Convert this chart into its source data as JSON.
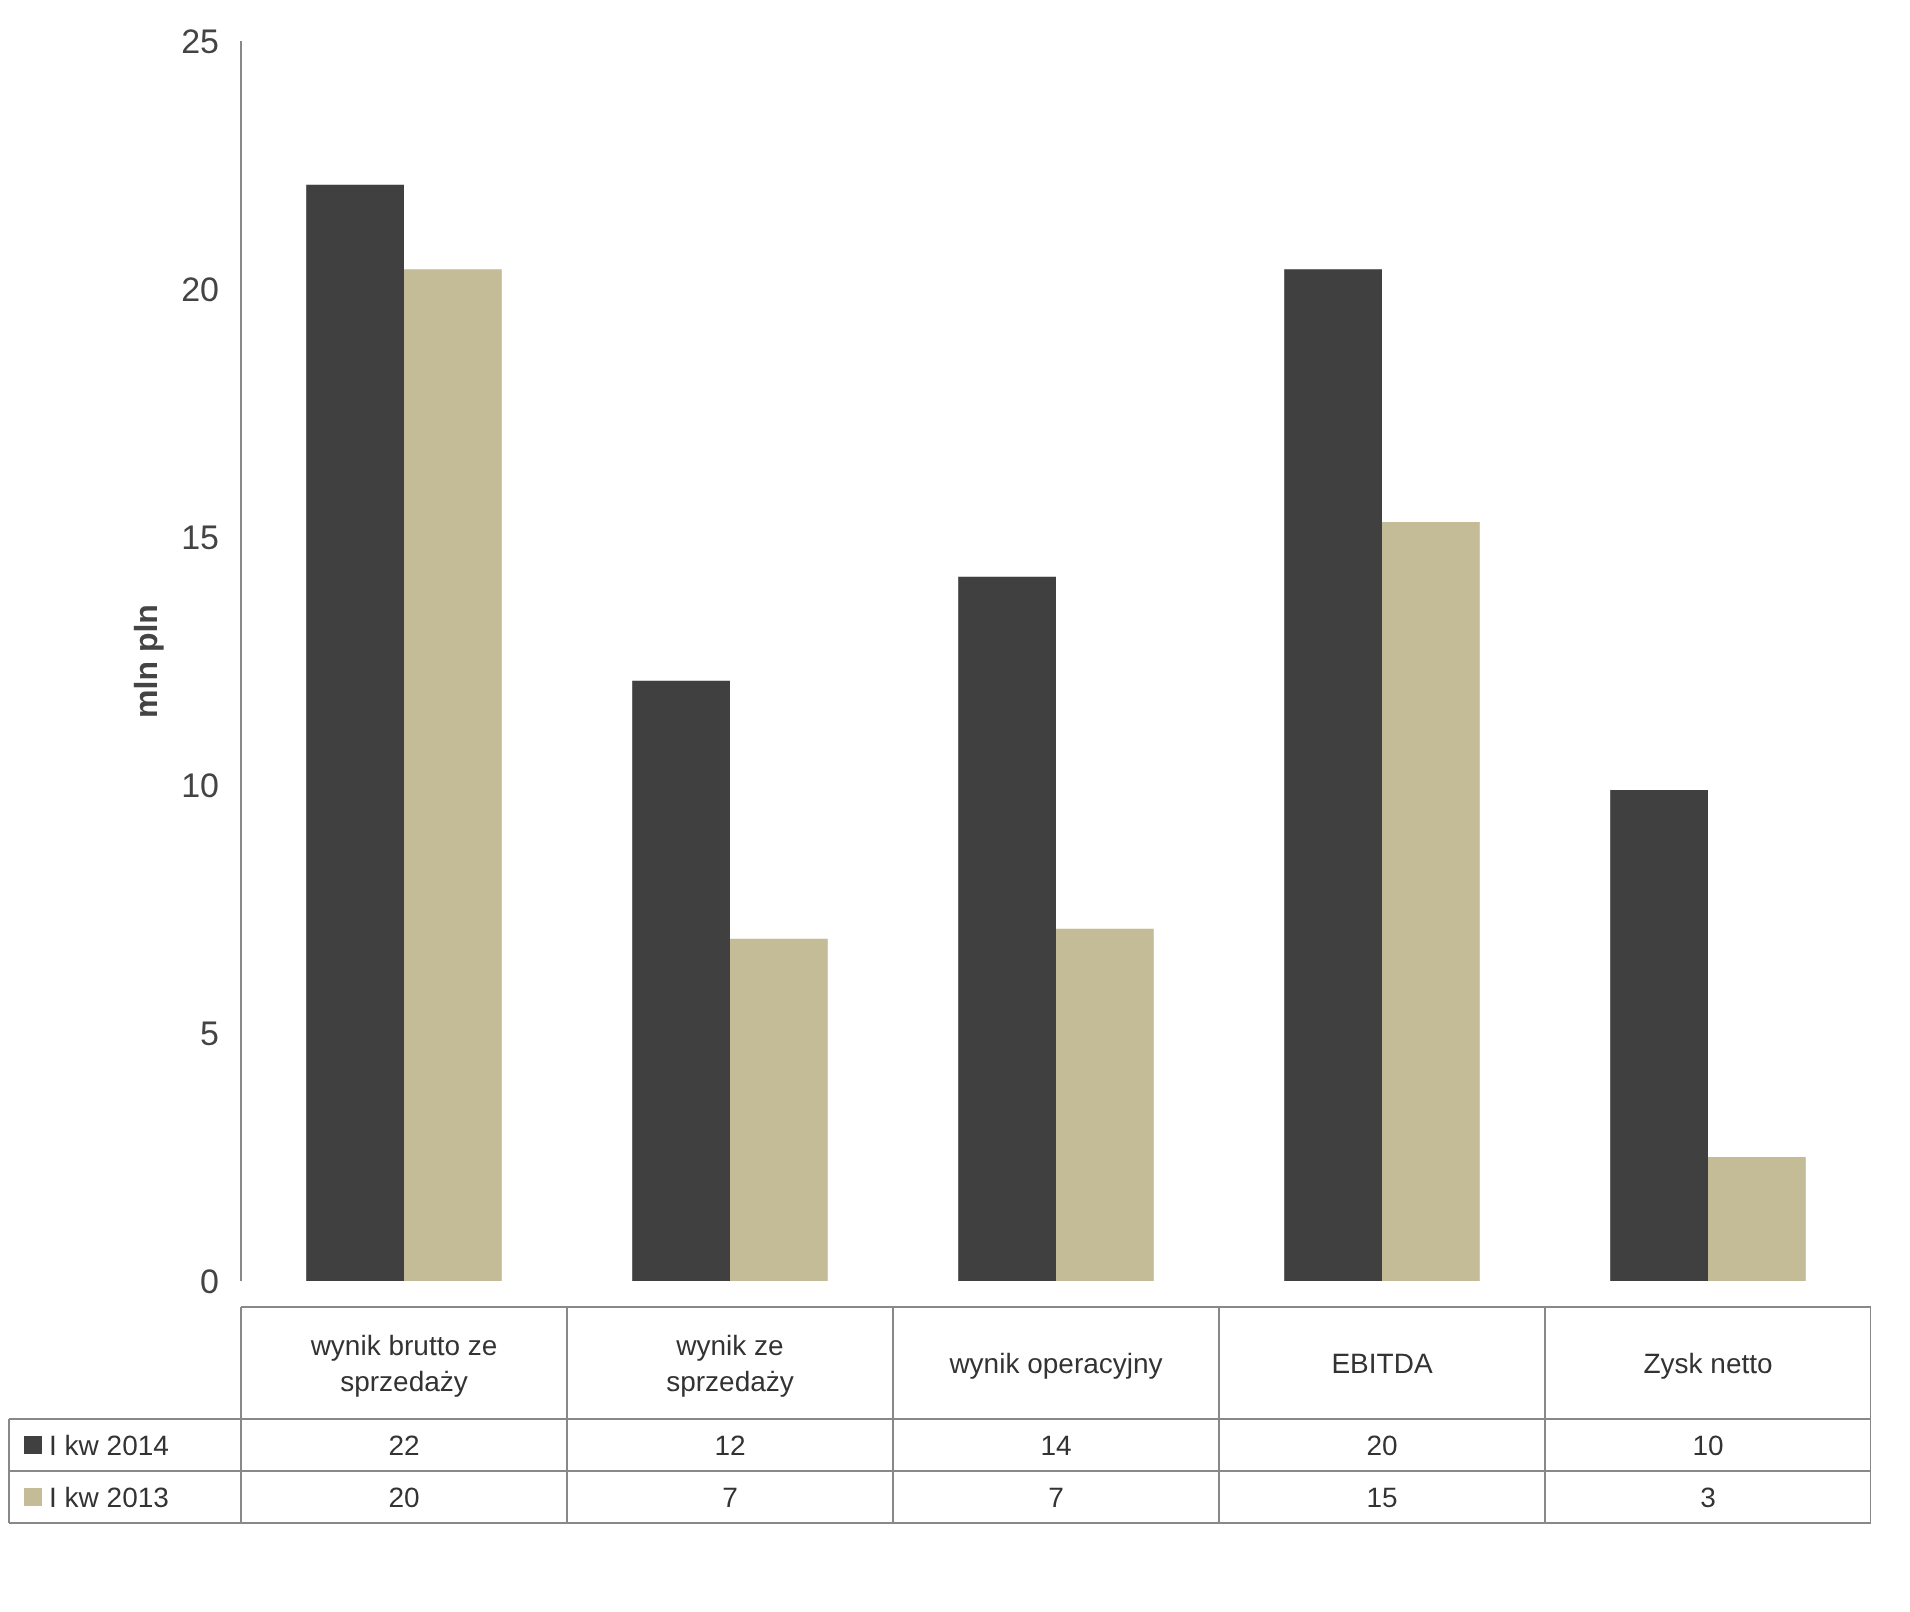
{
  "chart_data": {
    "type": "bar",
    "ylabel": "mln pln",
    "categories": [
      "wynik brutto ze sprzedaży",
      "wynik ze sprzedaży",
      "wynik operacyjny",
      "EBITDA",
      "Zysk netto"
    ],
    "series": [
      {
        "name": "I kw 2014",
        "color": "#404040",
        "values": [
          22.1,
          12.1,
          14.2,
          20.4,
          9.9
        ],
        "value_labels": [
          "22",
          "12",
          "14",
          "20",
          "10"
        ]
      },
      {
        "name": "I kw 2013",
        "color": "#c4bc96",
        "values": [
          20.4,
          6.9,
          7.1,
          15.3,
          2.5
        ],
        "value_labels": [
          "20",
          "7",
          "7",
          "15",
          "3"
        ]
      }
    ],
    "ylim": [
      0,
      25
    ],
    "yticks": [
      0,
      5,
      10,
      15,
      20,
      25
    ],
    "grid": false,
    "legend": "bottom"
  }
}
